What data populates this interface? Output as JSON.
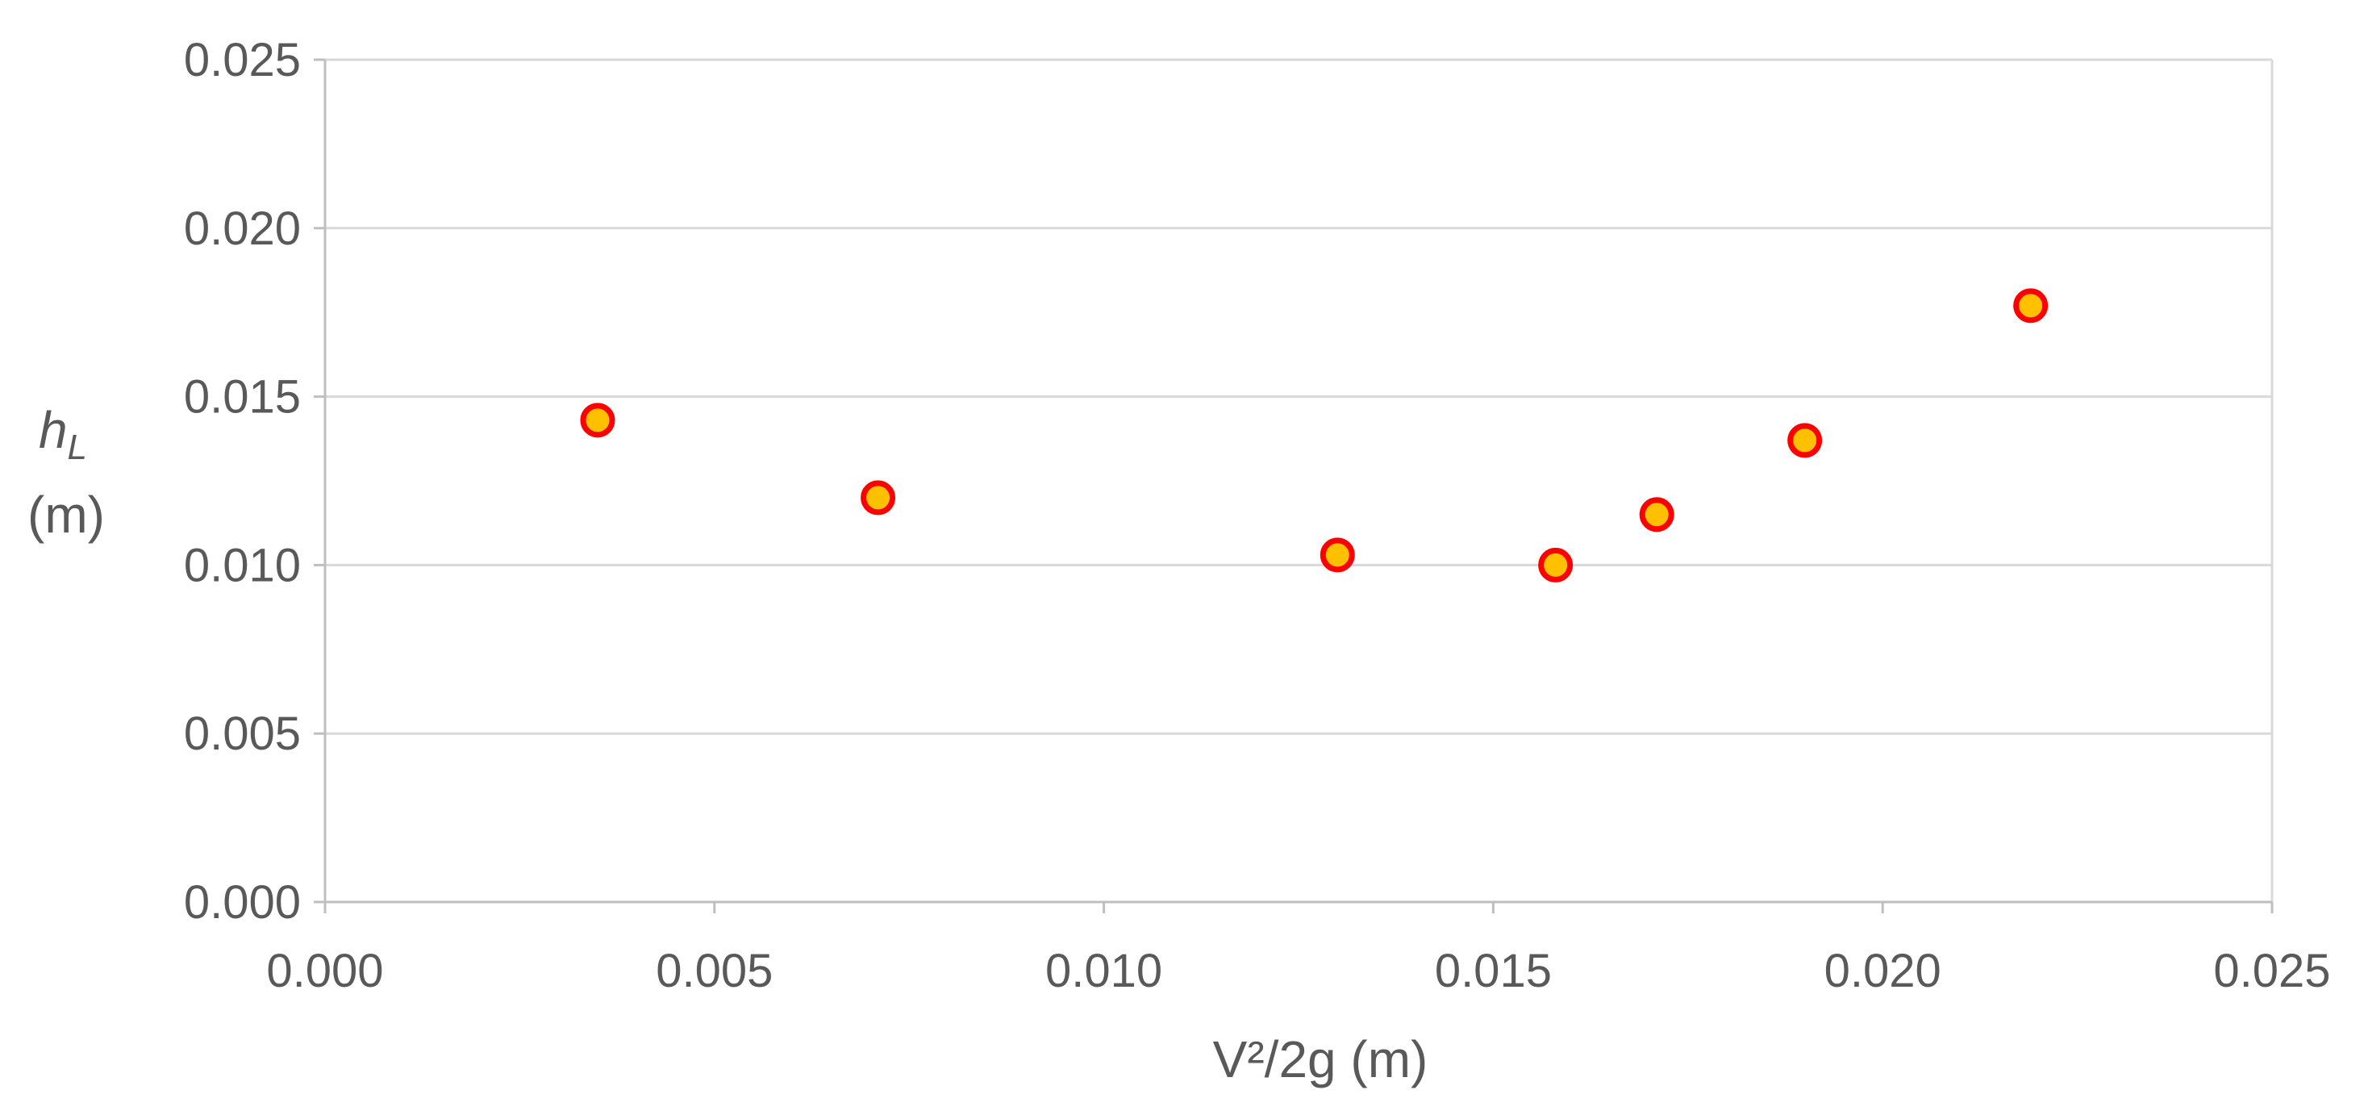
{
  "chart_data": {
    "type": "scatter",
    "xlabel": "V²/2g (m)",
    "ylabel_main": "h",
    "ylabel_sub": "L",
    "ylabel_unit": "(m)",
    "xlim": [
      0,
      0.025
    ],
    "ylim": [
      0,
      0.025
    ],
    "x_ticks": [
      "0.000",
      "0.005",
      "0.010",
      "0.015",
      "0.020",
      "0.025"
    ],
    "y_ticks": [
      "0.000",
      "0.005",
      "0.010",
      "0.015",
      "0.020",
      "0.025"
    ],
    "x_tick_values": [
      0,
      0.005,
      0.01,
      0.015,
      0.02,
      0.025
    ],
    "y_tick_values": [
      0,
      0.005,
      0.01,
      0.015,
      0.02,
      0.025
    ],
    "grid": true,
    "marker_fill": "#FFC000",
    "marker_edge": "#FF0000",
    "points": [
      {
        "x": 0.0035,
        "y": 0.0143
      },
      {
        "x": 0.0071,
        "y": 0.012
      },
      {
        "x": 0.013,
        "y": 0.0103
      },
      {
        "x": 0.0158,
        "y": 0.01
      },
      {
        "x": 0.0171,
        "y": 0.0115
      },
      {
        "x": 0.019,
        "y": 0.0137
      },
      {
        "x": 0.0219,
        "y": 0.0177
      }
    ]
  }
}
